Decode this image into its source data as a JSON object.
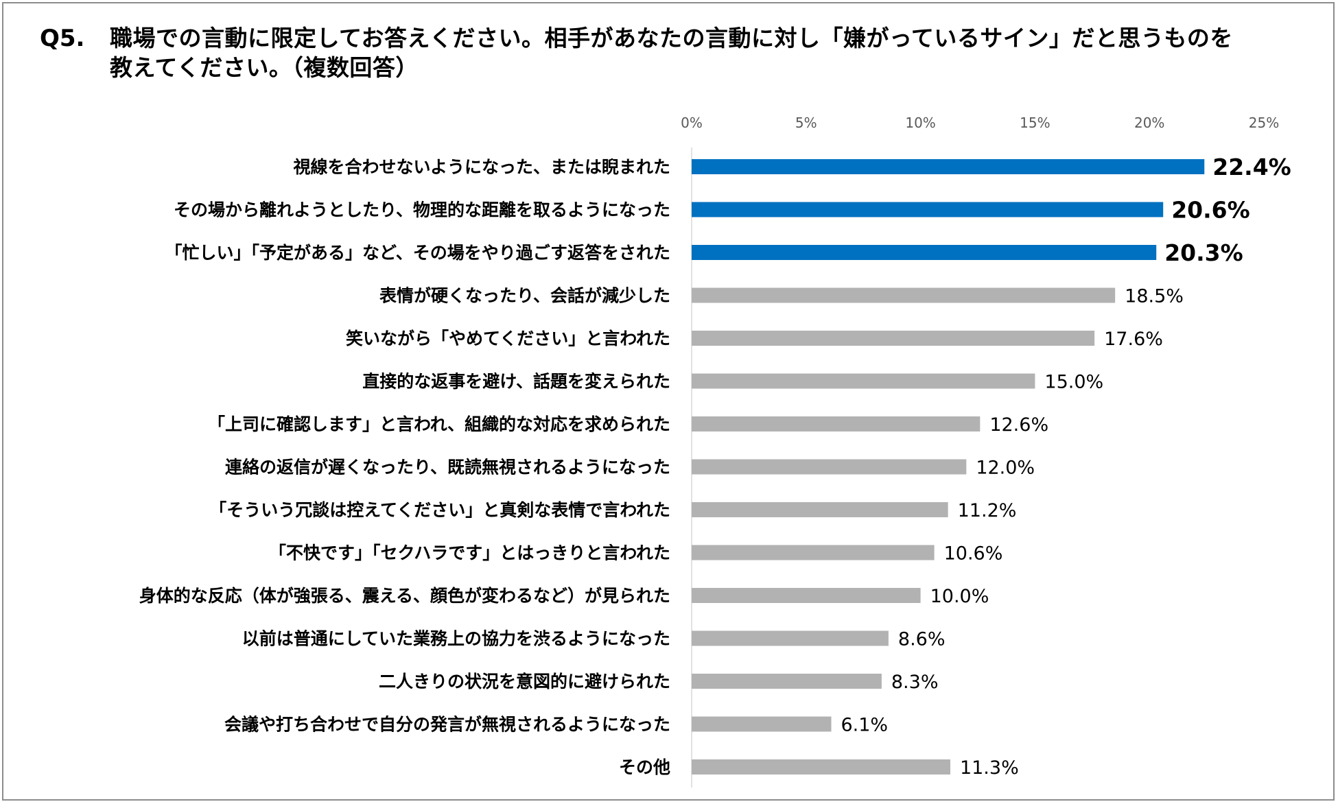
{
  "question": {
    "number": "Q5.",
    "text": "職場での言動に限定してお答えください。相手があなたの言動に対し「嫌がっているサイン」だと思うものを教えてください。（複数回答）"
  },
  "colors": {
    "highlight": "#0070c0",
    "normal": "#b2b2b2",
    "axis": "#d9d9d9"
  },
  "chart_data": {
    "type": "bar",
    "orientation": "horizontal",
    "title": "職場での言動に限定してお答えください。相手があなたの言動に対し「嫌がっているサイン」だと思うものを教えてください。（複数回答）",
    "xlim": [
      0,
      25
    ],
    "ticks": [
      0,
      5,
      10,
      15,
      20,
      25
    ],
    "tick_labels": [
      "0%",
      "5%",
      "10%",
      "15%",
      "20%",
      "25%"
    ],
    "tick_position": "top",
    "grid": false,
    "highlight_count": 3,
    "categories": [
      "視線を合わせないようになった、または睨まれた",
      "その場から離れようとしたり、物理的な距離を取るようになった",
      "「忙しい」「予定がある」など、その場をやり過ごす返答をされた",
      "表情が硬くなったり、会話が減少した",
      "笑いながら「やめてください」と言われた",
      "直接的な返事を避け、話題を変えられた",
      "「上司に確認します」と言われ、組織的な対応を求められた",
      "連絡の返信が遅くなったり、既読無視されるようになった",
      "「そういう冗談は控えてください」と真剣な表情で言われた",
      "「不快です」「セクハラです」とはっきりと言われた",
      "身体的な反応（体が強張る、震える、顔色が変わるなど）が見られた",
      "以前は普通にしていた業務上の協力を渋るようになった",
      "二人きりの状況を意図的に避けられた",
      "会議や打ち合わせで自分の発言が無視されるようになった",
      "その他"
    ],
    "values": [
      22.4,
      20.6,
      20.3,
      18.5,
      17.6,
      15.0,
      12.6,
      12.0,
      11.2,
      10.6,
      10.0,
      8.6,
      8.3,
      6.1,
      11.3
    ],
    "value_labels": [
      "22.4%",
      "20.6%",
      "20.3%",
      "18.5%",
      "17.6%",
      "15.0%",
      "12.6%",
      "12.0%",
      "11.2%",
      "10.6%",
      "10.0%",
      "8.6%",
      "8.3%",
      "6.1%",
      "11.3%"
    ]
  }
}
